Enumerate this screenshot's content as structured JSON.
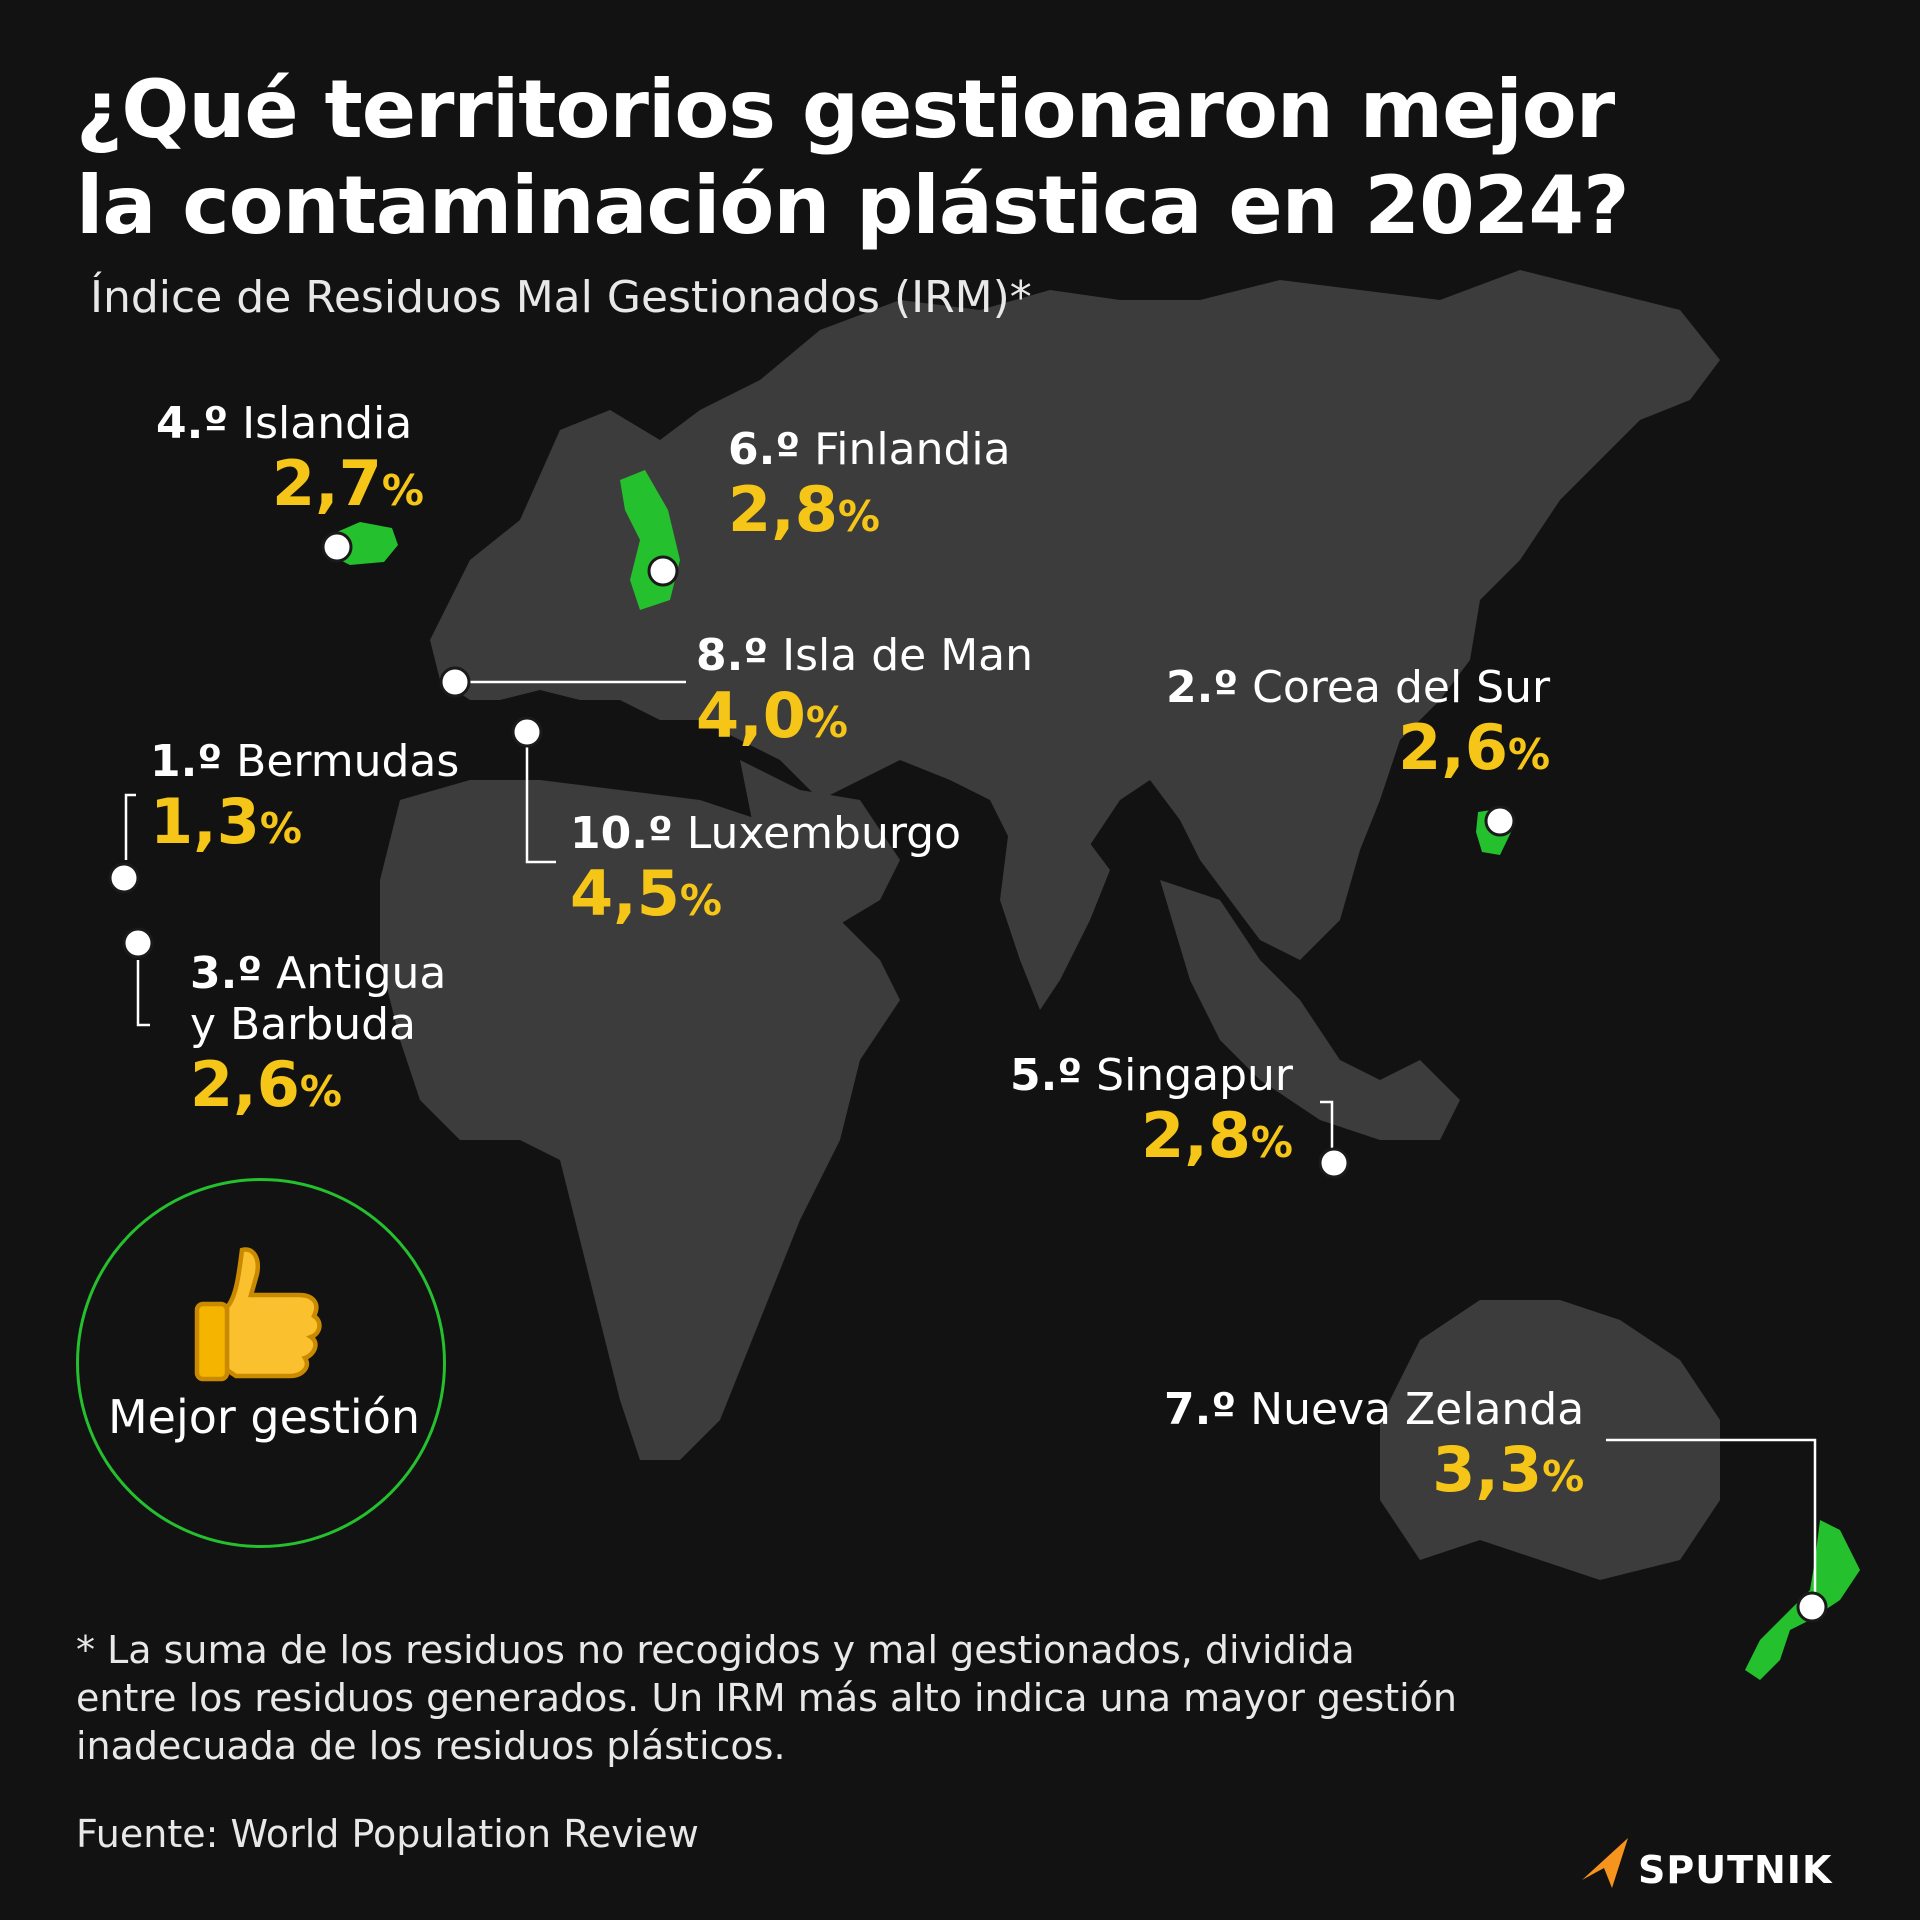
{
  "title_line1": "¿Qué territorios gestionaron mejor",
  "title_line2": "la contaminación plástica en 2024?",
  "subtitle": "Índice de Residuos Mal Gestionados (IRM)*",
  "colors": {
    "background": "#121212",
    "land": "#3c3c3c",
    "highlight": "#25c02d",
    "value": "#f5c518",
    "badge_ring": "#25c02d",
    "logo_accent": "#f7941d"
  },
  "territories": [
    {
      "rank": "1.º",
      "name": "Bermudas",
      "value": "1,3",
      "pct": "%"
    },
    {
      "rank": "2.º",
      "name": "Corea del Sur",
      "value": "2,6",
      "pct": "%"
    },
    {
      "rank": "3.º",
      "name": "Antigua",
      "name2": "y Barbuda",
      "value": "2,6",
      "pct": "%"
    },
    {
      "rank": "4.º",
      "name": "Islandia",
      "value": "2,7",
      "pct": "%"
    },
    {
      "rank": "5.º",
      "name": "Singapur",
      "value": "2,8",
      "pct": "%"
    },
    {
      "rank": "6.º",
      "name": "Finlandia",
      "value": "2,8",
      "pct": "%"
    },
    {
      "rank": "7.º",
      "name": "Nueva Zelanda",
      "value": "3,3",
      "pct": "%"
    },
    {
      "rank": "8.º",
      "name": "Isla de Man",
      "value": "4,0",
      "pct": "%"
    },
    {
      "rank": "10.º",
      "name": "Luxemburgo",
      "value": "4,5",
      "pct": "%"
    }
  ],
  "badge": {
    "icon": "thumbs-up-icon",
    "label": "Mejor gestión"
  },
  "footnote_line1": "* La suma de los residuos no recogidos y mal gestionados, dividida",
  "footnote_line2": "entre los residuos generados. Un IRM más alto indica una mayor gestión",
  "footnote_line3": "inadecuada de los residuos plásticos.",
  "source": "Fuente: World Population Review",
  "logo": "SPUTNIK"
}
